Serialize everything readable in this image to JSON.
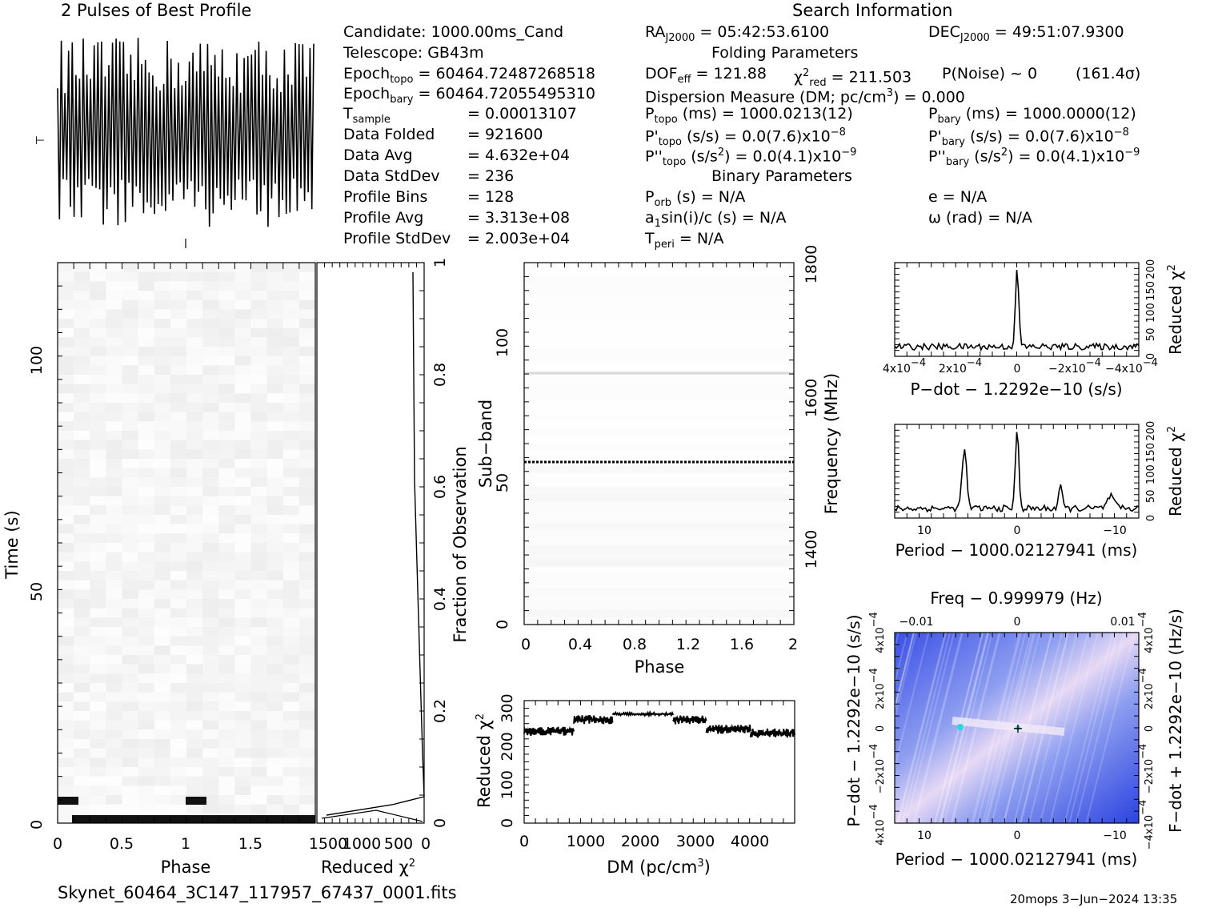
{
  "headers": {
    "profile_title": "2 Pulses of Best Profile",
    "search_title": "Search Information",
    "folding_title": "Folding Parameters",
    "binary_title": "Binary Parameters"
  },
  "candidate_info": {
    "candidate": "Candidate:  1000.00ms_Cand",
    "telescope": "Telescope:  GB43m",
    "epoch_topo_label": "Epoch",
    "epoch_topo_sub": "topo",
    "epoch_topo_value": " = 60464.72487268518",
    "epoch_bary_label": "Epoch",
    "epoch_bary_sub": "bary",
    "epoch_bary_value": " = 60464.72055495310",
    "t_sample_label": "T",
    "t_sample_sub": "sample",
    "t_sample_value": "=  0.00013107",
    "data_folded": "Data Folded",
    "data_folded_value": "=  921600",
    "data_avg": "Data Avg",
    "data_avg_value": "=  4.632e+04",
    "data_stddev": "Data StdDev",
    "data_stddev_value": "=  236",
    "profile_bins": "Profile Bins",
    "profile_bins_value": "=  128",
    "profile_avg": "Profile Avg",
    "profile_avg_value": "=  3.313e+08",
    "profile_stddev": "Profile StdDev",
    "profile_stddev_value": "=  2.003e+04"
  },
  "search_info": {
    "ra_label": "RA",
    "ra_sub": "J2000",
    "ra_value": " = 05:42:53.6100",
    "dec_label": "DEC",
    "dec_sub": "J2000",
    "dec_value": " = 49:51:07.9300",
    "dof_label": "DOF",
    "dof_sub": "eff",
    "dof_value": " = 121.88",
    "chi_label": "χ",
    "chi_sup": "2",
    "chi_sub": "red",
    "chi_value": " = 211.503",
    "pnoise": "P(Noise) ~ 0",
    "sigma": "(161.4σ)",
    "dm": "Dispersion Measure (DM; pc/cm",
    "dm_sup": "3",
    "dm_value": ") = 0.000",
    "ptopo_label": "P",
    "ptopo_sub": "topo",
    "ptopo_value": " (ms) =  1000.0213(12)",
    "pbary_label": "P",
    "pbary_sub": "bary",
    "pbary_value": " (ms) =  1000.0000(12)",
    "pdtopo_label": "P'",
    "pdtopo_sub": "topo",
    "pdtopo_value": " (s/s) = 0.0(7.6)x10",
    "pdtopo_sup": "−8",
    "pdbary_label": "P'",
    "pdbary_sub": "bary",
    "pdbary_value": " (s/s) = 0.0(7.6)x10",
    "pdbary_sup": "−8",
    "pddtopo_label": "P''",
    "pddtopo_sub": "topo",
    "pddtopo_value": " (s/s",
    "pddtopo_sup2": "2",
    "pddtopo_value2": ") = 0.0(4.1)x10",
    "pddtopo_sup": "−9",
    "pddbary_label": "P''",
    "pddbary_sub": "bary",
    "pddbary_value": " (s/s",
    "pddbary_sup2": "2",
    "pddbary_value2": ") = 0.0(4.1)x10",
    "pddbary_sup": "−9",
    "porb_label": "P",
    "porb_sub": "orb",
    "porb_value": " (s) = N/A",
    "e_value": "e = N/A",
    "a1_label": "a",
    "a1_sub": "1",
    "a1_value": "sin(i)/c (s) = N/A",
    "omega_value": "ω (rad) = N/A",
    "tperi_label": "T",
    "tperi_sub": "peri",
    "tperi_value": " = N/A"
  },
  "footer": {
    "filename": "Skynet_60464_3C147_117957_67437_0001.fits",
    "stamp": "20mops  3−Jun−2024 13:35"
  },
  "chart_data": [
    {
      "type": "line",
      "id": "best-profile",
      "title": "2 Pulses of Best Profile",
      "description_values": "noise-dominated profile, two pulses, 256 points"
    },
    {
      "type": "heatmap",
      "id": "time-phase",
      "xlabel": "Phase",
      "ylabel": "Time (s)",
      "xlim": [
        0,
        2
      ],
      "ylim": [
        0,
        120
      ],
      "xticks": [
        "0",
        "0.5",
        "1",
        "1.5"
      ],
      "yticks": [
        "0",
        "50",
        "100"
      ]
    },
    {
      "type": "line",
      "id": "time-chi2",
      "xlabel": "Reduced χ",
      "xlabel_sup": "2",
      "ylabel_right": "Fraction of Observation",
      "xticks": [
        "1500",
        "1000",
        "500",
        "0"
      ],
      "yticks_right": [
        "0",
        "0.2",
        "0.4",
        "0.6",
        "0.8",
        "1"
      ]
    },
    {
      "type": "heatmap",
      "id": "subband-phase",
      "xlabel": "Phase",
      "ylabel": "Sub−band",
      "ylabel_right": "Frequency (MHz)",
      "xticks": [
        "0",
        "0.4",
        "0.8",
        "1.2",
        "1.6",
        "2"
      ],
      "yticks": [
        "0",
        "50",
        "100"
      ],
      "yticks_right": [
        "1400",
        "1600",
        "1800"
      ],
      "xlim": [
        0,
        2
      ],
      "ylim": [
        0,
        128
      ]
    },
    {
      "type": "line",
      "id": "dm-chi2",
      "xlabel": "DM (pc/cm",
      "xlabel_sup": "3",
      "xlabel_end": ")",
      "ylabel": "Reduced χ",
      "ylabel_sup": "2",
      "xticks": [
        "0",
        "1000",
        "2000",
        "3000",
        "4000"
      ],
      "yticks": [
        "0",
        "100",
        "200",
        "300"
      ],
      "xlim": [
        0,
        4900
      ],
      "ylim": [
        0,
        320
      ],
      "steps": [
        {
          "x0": 0,
          "x1": 900,
          "y": 240
        },
        {
          "x0": 900,
          "x1": 1600,
          "y": 270
        },
        {
          "x0": 1600,
          "x1": 2700,
          "y": 285
        },
        {
          "x0": 2700,
          "x1": 3300,
          "y": 270
        },
        {
          "x0": 3300,
          "x1": 4100,
          "y": 245
        },
        {
          "x0": 4100,
          "x1": 4900,
          "y": 235
        }
      ]
    },
    {
      "type": "line",
      "id": "pdot-chi2",
      "xlabel": "P−dot − 1.2292e−10 (s/s)",
      "ylabel_right": "Reduced χ",
      "ylabel_right_sup": "2",
      "xticks": [
        "4x10",
        "2x10",
        "0",
        "−2x10",
        "−4x10"
      ],
      "xtick_sup": "−4",
      "yticks_right": [
        "0",
        "50",
        "100",
        "150",
        "200"
      ]
    },
    {
      "type": "line",
      "id": "period-chi2",
      "xlabel": "Period − 1000.02127941 (ms)",
      "ylabel_right": "Reduced χ",
      "ylabel_right_sup": "2",
      "xticks": [
        "10",
        "0",
        "−10"
      ],
      "yticks_right": [
        "0",
        "50",
        "100",
        "150",
        "200"
      ]
    },
    {
      "type": "heatmap",
      "id": "period-pdot",
      "title": "Freq − 0.999979 (Hz)",
      "xlabel": "Period − 1000.02127941 (ms)",
      "ylabel": "P−dot − 1.2292e−10 (s/s)",
      "ylabel_right": "F−dot + 1.2292e−10 (Hz/s)",
      "xticks": [
        "10",
        "0",
        "−10"
      ],
      "xticks_top": [
        "−0.01",
        "0",
        "0.01"
      ],
      "yticks": [
        "4x10",
        "−2x10",
        "0",
        "2x10",
        "4x10"
      ],
      "ytick_sup": "−4"
    }
  ]
}
